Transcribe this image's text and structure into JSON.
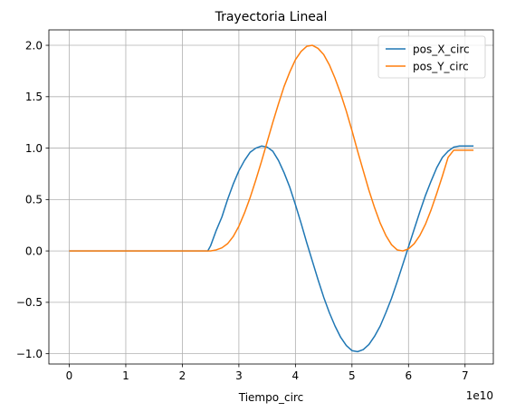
{
  "chart_data": {
    "type": "line",
    "title": "Trayectoria Lineal",
    "xlabel": "Tiempo_circ",
    "ylabel": "",
    "x_offset_label": "1e10",
    "x_scale": 10000000000,
    "xlim": [
      -0.36,
      7.5
    ],
    "ylim": [
      -1.1,
      2.15
    ],
    "xticks": [
      0,
      1,
      2,
      3,
      4,
      5,
      6,
      7
    ],
    "xtick_labels": [
      "0",
      "1",
      "2",
      "3",
      "4",
      "5",
      "6",
      "7"
    ],
    "yticks": [
      -1.0,
      -0.5,
      0.0,
      0.5,
      1.0,
      1.5,
      2.0
    ],
    "ytick_labels": [
      "−1.0",
      "−0.5",
      "0.0",
      "0.5",
      "1.0",
      "1.5",
      "2.0"
    ],
    "grid": true,
    "legend_position": "upper right",
    "series": [
      {
        "name": "pos_X_circ",
        "color": "#1f77b4",
        "x": [
          0,
          0.5,
          1.0,
          1.5,
          2.0,
          2.45,
          2.5,
          2.6,
          2.7,
          2.8,
          2.9,
          3.0,
          3.1,
          3.2,
          3.3,
          3.4,
          3.5,
          3.6,
          3.7,
          3.8,
          3.9,
          4.0,
          4.1,
          4.2,
          4.3,
          4.4,
          4.5,
          4.6,
          4.7,
          4.8,
          4.9,
          5.0,
          5.1,
          5.2,
          5.3,
          5.4,
          5.5,
          5.6,
          5.7,
          5.8,
          5.9,
          6.0,
          6.1,
          6.2,
          6.3,
          6.4,
          6.5,
          6.6,
          6.7,
          6.8,
          6.9,
          7.0,
          7.1,
          7.15
        ],
        "y": [
          0,
          0,
          0,
          0,
          0,
          0,
          0.05,
          0.2,
          0.33,
          0.5,
          0.65,
          0.78,
          0.88,
          0.96,
          1.0,
          1.02,
          1.01,
          0.97,
          0.88,
          0.76,
          0.62,
          0.45,
          0.27,
          0.08,
          -0.1,
          -0.28,
          -0.45,
          -0.6,
          -0.73,
          -0.84,
          -0.92,
          -0.97,
          -0.98,
          -0.96,
          -0.91,
          -0.83,
          -0.73,
          -0.6,
          -0.46,
          -0.3,
          -0.13,
          0.04,
          0.21,
          0.38,
          0.54,
          0.68,
          0.81,
          0.91,
          0.97,
          1.01,
          1.02,
          1.02,
          1.02,
          1.02
        ]
      },
      {
        "name": "pos_Y_circ",
        "color": "#ff7f0e",
        "x": [
          0,
          0.5,
          1.0,
          1.5,
          2.0,
          2.45,
          2.5,
          2.6,
          2.7,
          2.8,
          2.9,
          3.0,
          3.1,
          3.2,
          3.3,
          3.4,
          3.5,
          3.6,
          3.7,
          3.8,
          3.9,
          4.0,
          4.1,
          4.2,
          4.3,
          4.4,
          4.5,
          4.6,
          4.7,
          4.8,
          4.9,
          5.0,
          5.1,
          5.2,
          5.3,
          5.4,
          5.5,
          5.6,
          5.7,
          5.8,
          5.9,
          6.0,
          6.1,
          6.2,
          6.3,
          6.4,
          6.5,
          6.6,
          6.7,
          6.8,
          6.9,
          7.0,
          7.1,
          7.15
        ],
        "y": [
          0,
          0,
          0,
          0,
          0,
          0,
          0.0,
          0.01,
          0.03,
          0.07,
          0.14,
          0.24,
          0.37,
          0.52,
          0.69,
          0.87,
          1.06,
          1.25,
          1.43,
          1.6,
          1.74,
          1.86,
          1.94,
          1.99,
          2.0,
          1.97,
          1.91,
          1.81,
          1.68,
          1.53,
          1.36,
          1.17,
          0.97,
          0.78,
          0.59,
          0.42,
          0.27,
          0.15,
          0.06,
          0.01,
          0.0,
          0.02,
          0.07,
          0.15,
          0.26,
          0.4,
          0.56,
          0.73,
          0.91,
          0.98,
          0.98,
          0.98,
          0.98,
          0.98
        ]
      }
    ]
  }
}
